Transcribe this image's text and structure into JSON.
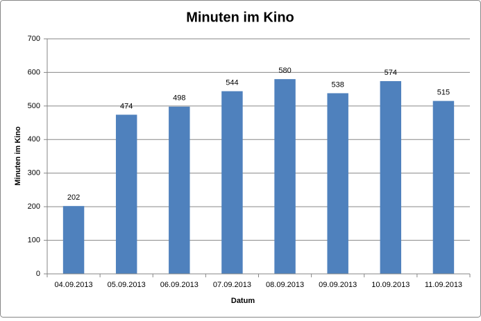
{
  "chart_data": {
    "type": "bar",
    "title": "Minuten im Kino",
    "x_label": "Datum",
    "y_label": "Minuten im Kino",
    "categories": [
      "04.09.2013",
      "05.09.2013",
      "06.09.2013",
      "07.09.2013",
      "08.09.2013",
      "09.09.2013",
      "10.09.2013",
      "11.09.2013"
    ],
    "values": [
      202,
      474,
      498,
      544,
      580,
      538,
      574,
      515
    ],
    "color": "#4f81bd",
    "ylim": [
      0,
      700
    ],
    "yticks": [
      0,
      100,
      200,
      300,
      400,
      500,
      600,
      700
    ],
    "grid": true,
    "data_labels": true
  }
}
